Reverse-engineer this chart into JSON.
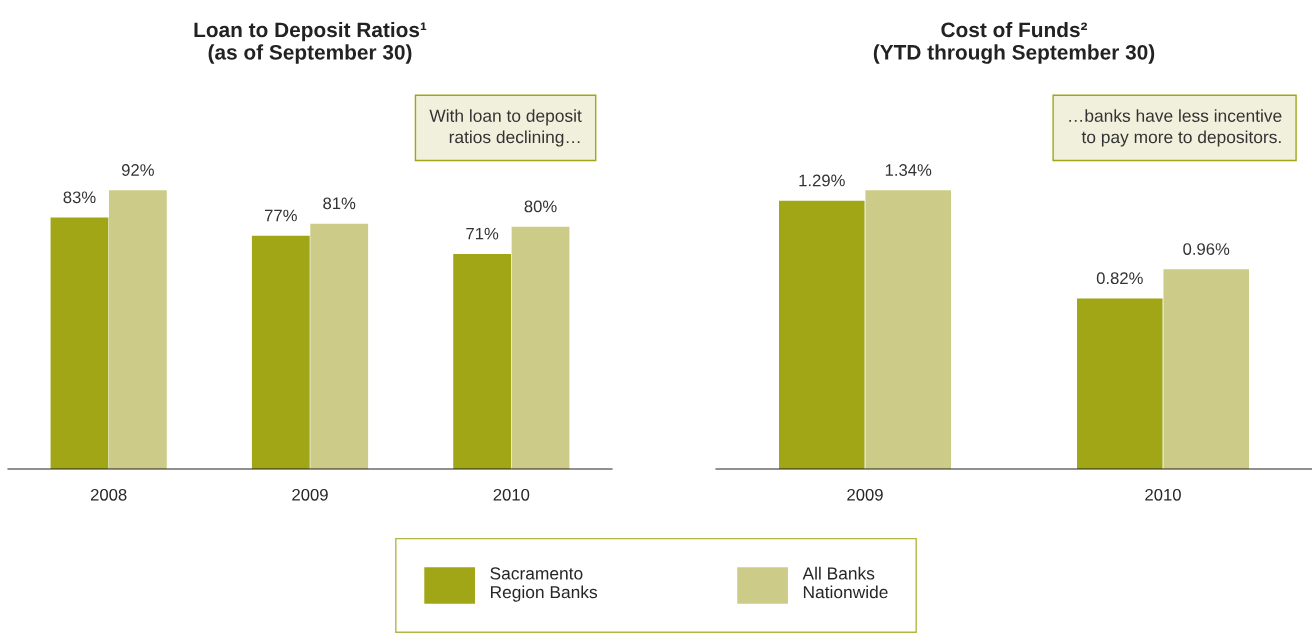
{
  "chart_data": [
    {
      "type": "bar",
      "title": "Loan to Deposit Ratios¹\n(as of September 30)",
      "categories": [
        "2008",
        "2009",
        "2010"
      ],
      "legend": "bottom",
      "series": [
        {
          "name": "Sacramento\nRegion Banks",
          "color": "#a0a616",
          "values": [
            83,
            77,
            71
          ],
          "value_labels": [
            "83%",
            "77%",
            "71%"
          ]
        },
        {
          "name": "All Banks\nNationwide",
          "color": "#cccc88",
          "values": [
            92,
            81,
            80
          ],
          "value_labels": [
            "92%",
            "81%",
            "80%"
          ]
        }
      ],
      "annotations": [
        "With loan to deposit\nratios declining…"
      ]
    },
    {
      "type": "bar",
      "title": "Cost of Funds²\n(YTD through September 30)",
      "categories": [
        "2009",
        "2010"
      ],
      "series": [
        {
          "color": "#a0a616",
          "values": [
            1.29,
            0.82
          ],
          "value_labels": [
            "1.29%",
            "0.82%"
          ]
        },
        {
          "color": "#cccc88",
          "values": [
            1.34,
            0.96
          ],
          "value_labels": [
            "1.34%",
            "0.96%"
          ]
        }
      ],
      "annotations": [
        "…banks have less incentive\nto pay more to depositors."
      ]
    }
  ]
}
